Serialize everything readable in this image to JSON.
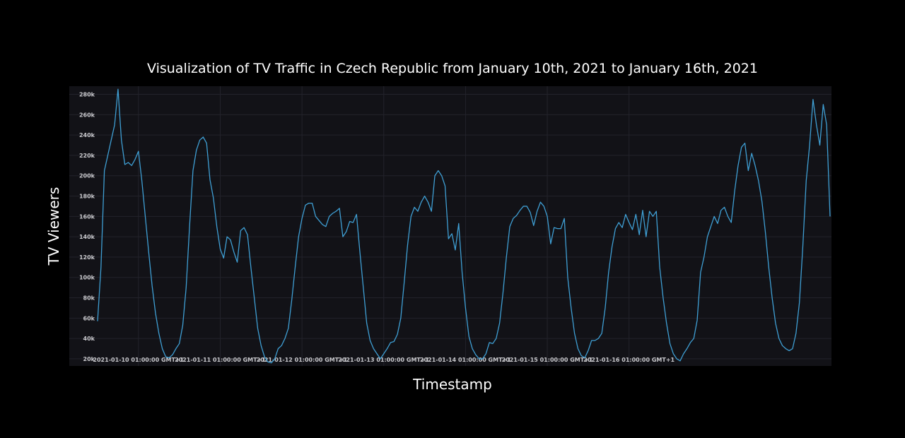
{
  "chart_data": {
    "type": "line",
    "title": "Visualization of TV Traffic in Czech Republic from January 10th, 2021 to January 16th, 2021",
    "xlabel": "Timestamp",
    "ylabel": "TV Viewers",
    "x_tick_labels": [
      "2021-01-10 01:00:00 GMT+1",
      "2021-01-11 01:00:00 GMT+1",
      "2021-01-12 01:00:00 GMT+1",
      "2021-01-13 01:00:00 GMT+1",
      "2021-01-14 01:00:00 GMT+1",
      "2021-01-15 01:00:00 GMT+1",
      "2021-01-16 01:00:00 GMT+1"
    ],
    "y_ticks": [
      20000,
      40000,
      60000,
      80000,
      100000,
      120000,
      140000,
      160000,
      180000,
      200000,
      220000,
      240000,
      260000,
      280000
    ],
    "y_tick_labels": [
      "20k",
      "40k",
      "60k",
      "80k",
      "100k",
      "120k",
      "140k",
      "160k",
      "180k",
      "200k",
      "220k",
      "240k",
      "260k",
      "280k"
    ],
    "ylim": [
      13000,
      288000
    ],
    "x_start": "2021-01-09 13:00:00 GMT+1",
    "x_step_hours": 1,
    "grid": true,
    "line_color": "#3f9fd4",
    "plot_background": "#121217",
    "page_background": "#000000",
    "series": [
      {
        "values": [
          57000,
          110000,
          205000,
          220000,
          235000,
          250000,
          285000,
          235000,
          211000,
          213000,
          210000,
          216000,
          224000,
          195000,
          160000,
          125000,
          92000,
          65000,
          45000,
          30000,
          22000,
          21000,
          24000,
          30000,
          35000,
          53000,
          90000,
          150000,
          205000,
          225000,
          235000,
          238000,
          232000,
          196000,
          178000,
          150000,
          128000,
          119000,
          140000,
          137000,
          125000,
          115000,
          146000,
          149000,
          142000,
          110000,
          80000,
          50000,
          33000,
          22000,
          17000,
          16000,
          20000,
          30000,
          33000,
          40000,
          50000,
          78000,
          110000,
          140000,
          158000,
          171000,
          173000,
          173000,
          160000,
          156000,
          152000,
          150000,
          160000,
          163000,
          165000,
          168000,
          140000,
          145000,
          155000,
          154000,
          162000,
          125000,
          90000,
          55000,
          38000,
          30000,
          25000,
          20000,
          25000,
          30000,
          36000,
          37000,
          44000,
          60000,
          95000,
          132000,
          160000,
          169000,
          165000,
          174000,
          180000,
          174000,
          165000,
          200000,
          205000,
          200000,
          190000,
          138000,
          143000,
          127000,
          153000,
          105000,
          70000,
          42000,
          30000,
          24000,
          20000,
          20000,
          25000,
          36000,
          35000,
          40000,
          55000,
          85000,
          120000,
          150000,
          158000,
          161000,
          166000,
          170000,
          170000,
          164000,
          151000,
          165000,
          174000,
          170000,
          160000,
          133000,
          149000,
          148000,
          148000,
          158000,
          100000,
          70000,
          45000,
          30000,
          23000,
          21000,
          28000,
          38000,
          38000,
          40000,
          45000,
          70000,
          105000,
          130000,
          148000,
          154000,
          149000,
          162000,
          154000,
          147000,
          162000,
          142000,
          166000,
          140000,
          165000,
          160000,
          165000,
          110000,
          80000,
          55000,
          35000,
          25000,
          20000,
          18000,
          25000,
          30000,
          36000,
          40000,
          58000,
          105000,
          120000,
          140000,
          150000,
          160000,
          153000,
          166000,
          169000,
          160000,
          154000,
          185000,
          210000,
          228000,
          232000,
          205000,
          222000,
          210000,
          195000,
          175000,
          145000,
          110000,
          80000,
          55000,
          40000,
          33000,
          30000,
          28000,
          30000,
          45000,
          75000,
          130000,
          195000,
          230000,
          275000,
          250000,
          230000,
          270000,
          250000,
          160000
        ]
      }
    ]
  }
}
